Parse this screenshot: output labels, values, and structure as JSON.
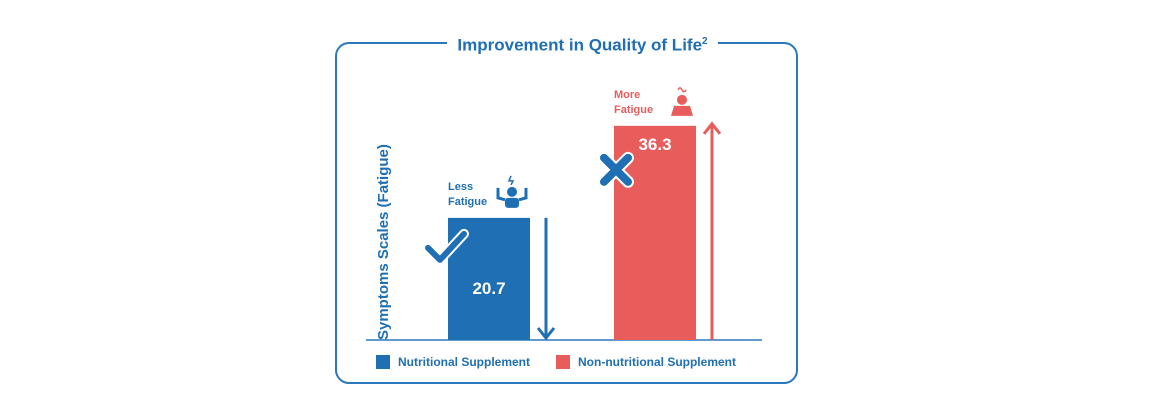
{
  "chart_data": {
    "type": "bar",
    "title": "Improvement in Quality of Life",
    "title_superscript": "2",
    "ylabel": "Symptoms Scales (Fatigue)",
    "ylim": [
      0,
      50
    ],
    "categories": [
      "Nutritional Supplement",
      "Non-nutritional Supplement"
    ],
    "values": [
      20.7,
      36.3
    ],
    "value_labels": [
      "20.7",
      "36.3"
    ],
    "colors": [
      "#1f6fb5",
      "#e85c5c"
    ],
    "annotations": [
      {
        "line1": "Less",
        "line2": "Fatigue",
        "color": "#1f6fb5",
        "icon": "strong-person-icon",
        "mark": "checkmark-icon",
        "arrow": "down"
      },
      {
        "line1": "More",
        "line2": "Fatigue",
        "color": "#e85c5c",
        "icon": "tired-person-icon",
        "mark": "cross-icon",
        "arrow": "up"
      }
    ],
    "legend": {
      "placement": "bottom",
      "items": [
        {
          "label": "Nutritional Supplement",
          "color": "#1f6fb5"
        },
        {
          "label": "Non-nutritional Supplement",
          "color": "#e85c5c"
        }
      ]
    }
  }
}
